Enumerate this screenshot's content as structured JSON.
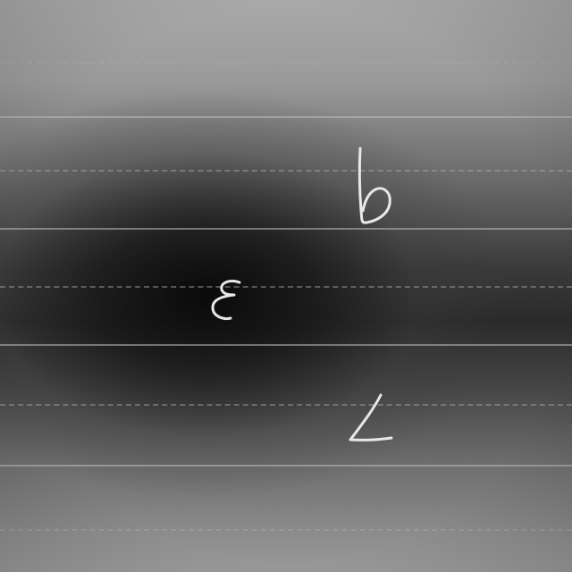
{
  "photo": {
    "subject": "handwritten-characters-on-ruled-paper"
  },
  "characters": [
    {
      "glyph": "b",
      "name": "letter-b"
    },
    {
      "glyph": "ε",
      "name": "epsilon"
    },
    {
      "glyph": "∠",
      "name": "angle-symbol"
    }
  ],
  "colors": {
    "ink": "#e8e8e8",
    "paper_light": "#a9a9a9",
    "paper_dark": "#2a2a2a"
  }
}
